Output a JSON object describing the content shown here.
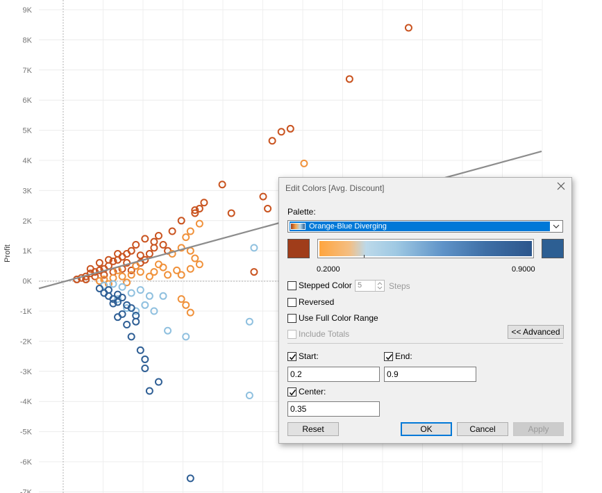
{
  "chart_data": {
    "type": "scatter",
    "ylabel": "Profit",
    "yticks": [
      "9K",
      "8K",
      "7K",
      "6K",
      "5K",
      "4K",
      "3K",
      "2K",
      "1K",
      "0K",
      "-1K",
      "-2K",
      "-3K",
      "-4K",
      "-5K",
      "-6K",
      "-7K"
    ],
    "ylim": [
      -7000,
      9200
    ],
    "xlim": [
      0,
      100
    ],
    "trend_line": {
      "x": [
        0,
        100
      ],
      "y": [
        -250,
        4300
      ]
    },
    "colors": {
      "dark_orange": "#c9531f",
      "orange": "#f0913a",
      "light_blue": "#8fc0df",
      "dark_blue": "#2f5f95"
    },
    "series": [
      {
        "color": "dark_orange",
        "points": [
          [
            76,
            8400
          ],
          [
            63,
            6700
          ],
          [
            50,
            5050
          ],
          [
            48,
            4950
          ],
          [
            46,
            4650
          ],
          [
            35,
            3200
          ],
          [
            44,
            2800
          ],
          [
            45,
            2400
          ],
          [
            31,
            2600
          ],
          [
            30,
            2400
          ],
          [
            29,
            2350
          ],
          [
            29,
            2250
          ],
          [
            26,
            2000
          ],
          [
            37,
            2250
          ],
          [
            24,
            1650
          ],
          [
            21,
            1500
          ],
          [
            18,
            1400
          ],
          [
            20,
            1300
          ],
          [
            20,
            1100
          ],
          [
            22,
            1200
          ],
          [
            19,
            900
          ],
          [
            23,
            1000
          ],
          [
            16,
            1200
          ],
          [
            15,
            1000
          ],
          [
            17,
            850
          ],
          [
            14,
            900
          ],
          [
            13,
            800
          ],
          [
            12,
            700
          ],
          [
            11,
            650
          ],
          [
            10,
            500
          ],
          [
            9,
            400
          ],
          [
            8,
            350
          ],
          [
            7,
            300
          ],
          [
            6,
            250
          ],
          [
            5,
            150
          ],
          [
            4,
            100
          ],
          [
            3,
            50
          ],
          [
            6,
            400
          ],
          [
            8,
            600
          ],
          [
            10,
            700
          ],
          [
            12,
            900
          ],
          [
            14,
            600
          ],
          [
            16,
            500
          ],
          [
            11,
            300
          ],
          [
            9,
            200
          ],
          [
            13,
            400
          ],
          [
            15,
            350
          ],
          [
            17,
            600
          ],
          [
            18,
            700
          ],
          [
            7,
            150
          ],
          [
            5,
            50
          ],
          [
            42,
            300
          ]
        ]
      },
      {
        "color": "orange",
        "points": [
          [
            53,
            3900
          ],
          [
            30,
            1900
          ],
          [
            28,
            1650
          ],
          [
            27,
            1450
          ],
          [
            26,
            1100
          ],
          [
            24,
            900
          ],
          [
            28,
            1000
          ],
          [
            29,
            750
          ],
          [
            30,
            550
          ],
          [
            28,
            400
          ],
          [
            25,
            350
          ],
          [
            26,
            200
          ],
          [
            27,
            -800
          ],
          [
            28,
            -1050
          ],
          [
            26,
            -600
          ],
          [
            22,
            450
          ],
          [
            21,
            550
          ],
          [
            20,
            300
          ],
          [
            23,
            200
          ],
          [
            19,
            150
          ],
          [
            17,
            300
          ],
          [
            15,
            200
          ],
          [
            13,
            150
          ],
          [
            11,
            100
          ],
          [
            9,
            50
          ],
          [
            16,
            500
          ],
          [
            12,
            350
          ],
          [
            14,
            -50
          ],
          [
            10,
            -100
          ],
          [
            8,
            0
          ]
        ]
      },
      {
        "color": "light_blue",
        "points": [
          [
            42,
            1100
          ],
          [
            41,
            -1350
          ],
          [
            41,
            -3800
          ],
          [
            27,
            -1850
          ],
          [
            23,
            -1650
          ],
          [
            22,
            -500
          ],
          [
            18,
            -800
          ],
          [
            20,
            -1000
          ],
          [
            17,
            -300
          ],
          [
            15,
            -400
          ],
          [
            13,
            -200
          ],
          [
            11,
            -100
          ],
          [
            12,
            -600
          ],
          [
            14,
            -900
          ],
          [
            16,
            -1000
          ],
          [
            10,
            -300
          ],
          [
            9,
            -150
          ],
          [
            19,
            -500
          ]
        ]
      },
      {
        "color": "dark_blue",
        "points": [
          [
            28,
            -6550
          ],
          [
            19,
            -3650
          ],
          [
            21,
            -3350
          ],
          [
            18,
            -2900
          ],
          [
            18,
            -2600
          ],
          [
            17,
            -2300
          ],
          [
            15,
            -1850
          ],
          [
            14,
            -1450
          ],
          [
            13,
            -1100
          ],
          [
            12,
            -1200
          ],
          [
            15,
            -900
          ],
          [
            16,
            -1150
          ],
          [
            16,
            -1350
          ],
          [
            14,
            -800
          ],
          [
            12,
            -700
          ],
          [
            11,
            -600
          ],
          [
            10,
            -500
          ],
          [
            9,
            -400
          ],
          [
            10,
            -300
          ],
          [
            13,
            -550
          ],
          [
            11,
            -750
          ],
          [
            12,
            -450
          ],
          [
            8,
            -250
          ]
        ]
      }
    ]
  },
  "dialog": {
    "title": "Edit Colors [Avg. Discount]",
    "palette_label": "Palette:",
    "palette_value": "Orange-Blue Diverging",
    "start_color": "#a03d1a",
    "end_color": "#2d5f93",
    "ramp_min": "0.2000",
    "ramp_max": "0.9000",
    "stepped_color_label": "Stepped Color",
    "steps_value": "5",
    "steps_label": "Steps",
    "reversed_label": "Reversed",
    "full_range_label": "Use Full Color Range",
    "include_totals_label": "Include Totals",
    "advanced_button": "<< Advanced",
    "start_label": "Start:",
    "start_value": "0.2",
    "end_label": "End:",
    "end_value": "0.9",
    "center_label": "Center:",
    "center_value": "0.35",
    "reset_button": "Reset",
    "ok_button": "OK",
    "cancel_button": "Cancel",
    "apply_button": "Apply",
    "checks": {
      "stepped": false,
      "reversed": false,
      "full_range": false,
      "include_totals": false,
      "start": true,
      "end": true,
      "center": true
    }
  }
}
